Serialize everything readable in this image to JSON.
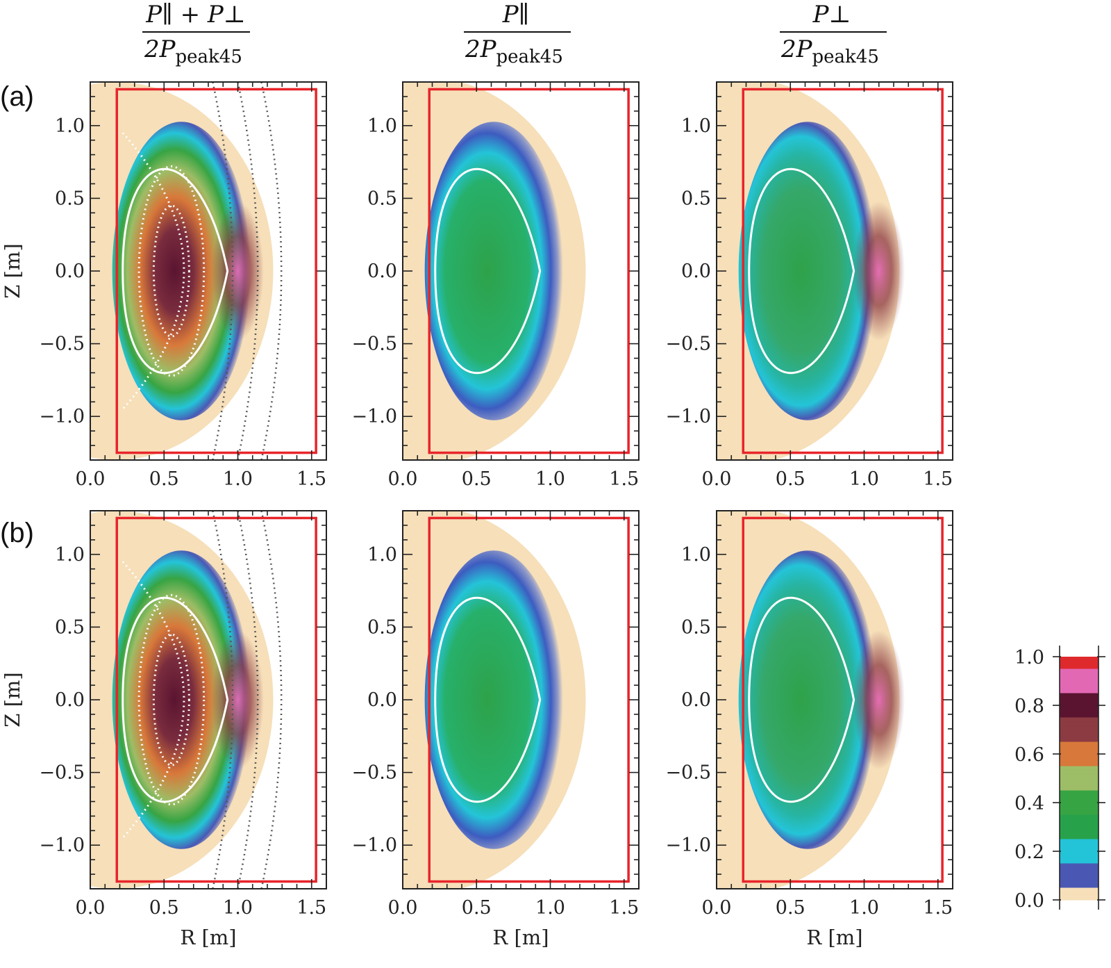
{
  "headers": [
    {
      "num": "P∥ + P⊥",
      "den_prefix": "2P",
      "den_sub": "peak45"
    },
    {
      "num": "P∥",
      "den_prefix": "2P",
      "den_sub": "peak45"
    },
    {
      "num": "P⊥",
      "den_prefix": "2P",
      "den_sub": "peak45"
    }
  ],
  "row_labels": [
    "(a)",
    "(b)"
  ],
  "colors": {
    "frame": "#e8242a",
    "separatrix": "#ffffff",
    "background": "#ffffff"
  },
  "colormap": [
    {
      "value": 0.0,
      "color": "#f6dfb9"
    },
    {
      "value": 0.1,
      "color": "#4a58b4"
    },
    {
      "value": 0.2,
      "color": "#24c4d8"
    },
    {
      "value": 0.3,
      "color": "#27a24a"
    },
    {
      "value": 0.4,
      "color": "#37a443"
    },
    {
      "value": 0.5,
      "color": "#9dbd66"
    },
    {
      "value": 0.6,
      "color": "#d8783a"
    },
    {
      "value": 0.7,
      "color": "#8c3b42"
    },
    {
      "value": 0.8,
      "color": "#5a1430"
    },
    {
      "value": 0.9,
      "color": "#e368b4"
    },
    {
      "value": 1.0,
      "color": "#df2a2d"
    }
  ],
  "chart_data": {
    "type": "heatmap",
    "layout": "2 rows x 3 columns of contour maps with shared colorbar",
    "xlabel": "R [m]",
    "ylabel": "Z [m]",
    "xlim": [
      0.0,
      1.6
    ],
    "ylim": [
      -1.3,
      1.3
    ],
    "xticks": [
      0.0,
      0.5,
      1.0,
      1.5
    ],
    "xtick_labels": [
      "0.0",
      "0.5",
      "1.0",
      "1.5"
    ],
    "yticks": [
      1.0,
      0.5,
      0.0,
      -0.5,
      -1.0
    ],
    "ytick_labels": [
      "1.0",
      "0.5",
      "0.0",
      "−0.5",
      "−1.0"
    ],
    "red_box": {
      "r_min": 0.18,
      "r_max": 1.53,
      "z_min": -1.25,
      "z_max": 1.25
    },
    "separatrix": {
      "r_in": 0.22,
      "r_out": 0.93,
      "z_half": 0.87
    },
    "colorbar": {
      "min": 0.0,
      "max": 1.0,
      "ticks": [
        "1.0",
        "0.8",
        "0.6",
        "0.4",
        "0.2",
        "0.0"
      ]
    },
    "panels": [
      {
        "row": "(a)",
        "quantity": "total",
        "peak_value": 0.85,
        "peak_r": 0.6
      },
      {
        "row": "(a)",
        "quantity": "parallel",
        "peak_value": 0.35,
        "peak_r": 0.65
      },
      {
        "row": "(a)",
        "quantity": "perpendicular",
        "peak_value": 0.8,
        "peak_r": 1.1
      },
      {
        "row": "(b)",
        "quantity": "total",
        "peak_value": 0.85,
        "peak_r": 0.6
      },
      {
        "row": "(b)",
        "quantity": "parallel",
        "peak_value": 0.35,
        "peak_r": 0.7
      },
      {
        "row": "(b)",
        "quantity": "perpendicular",
        "peak_value": 0.9,
        "peak_r": 1.1
      }
    ]
  }
}
